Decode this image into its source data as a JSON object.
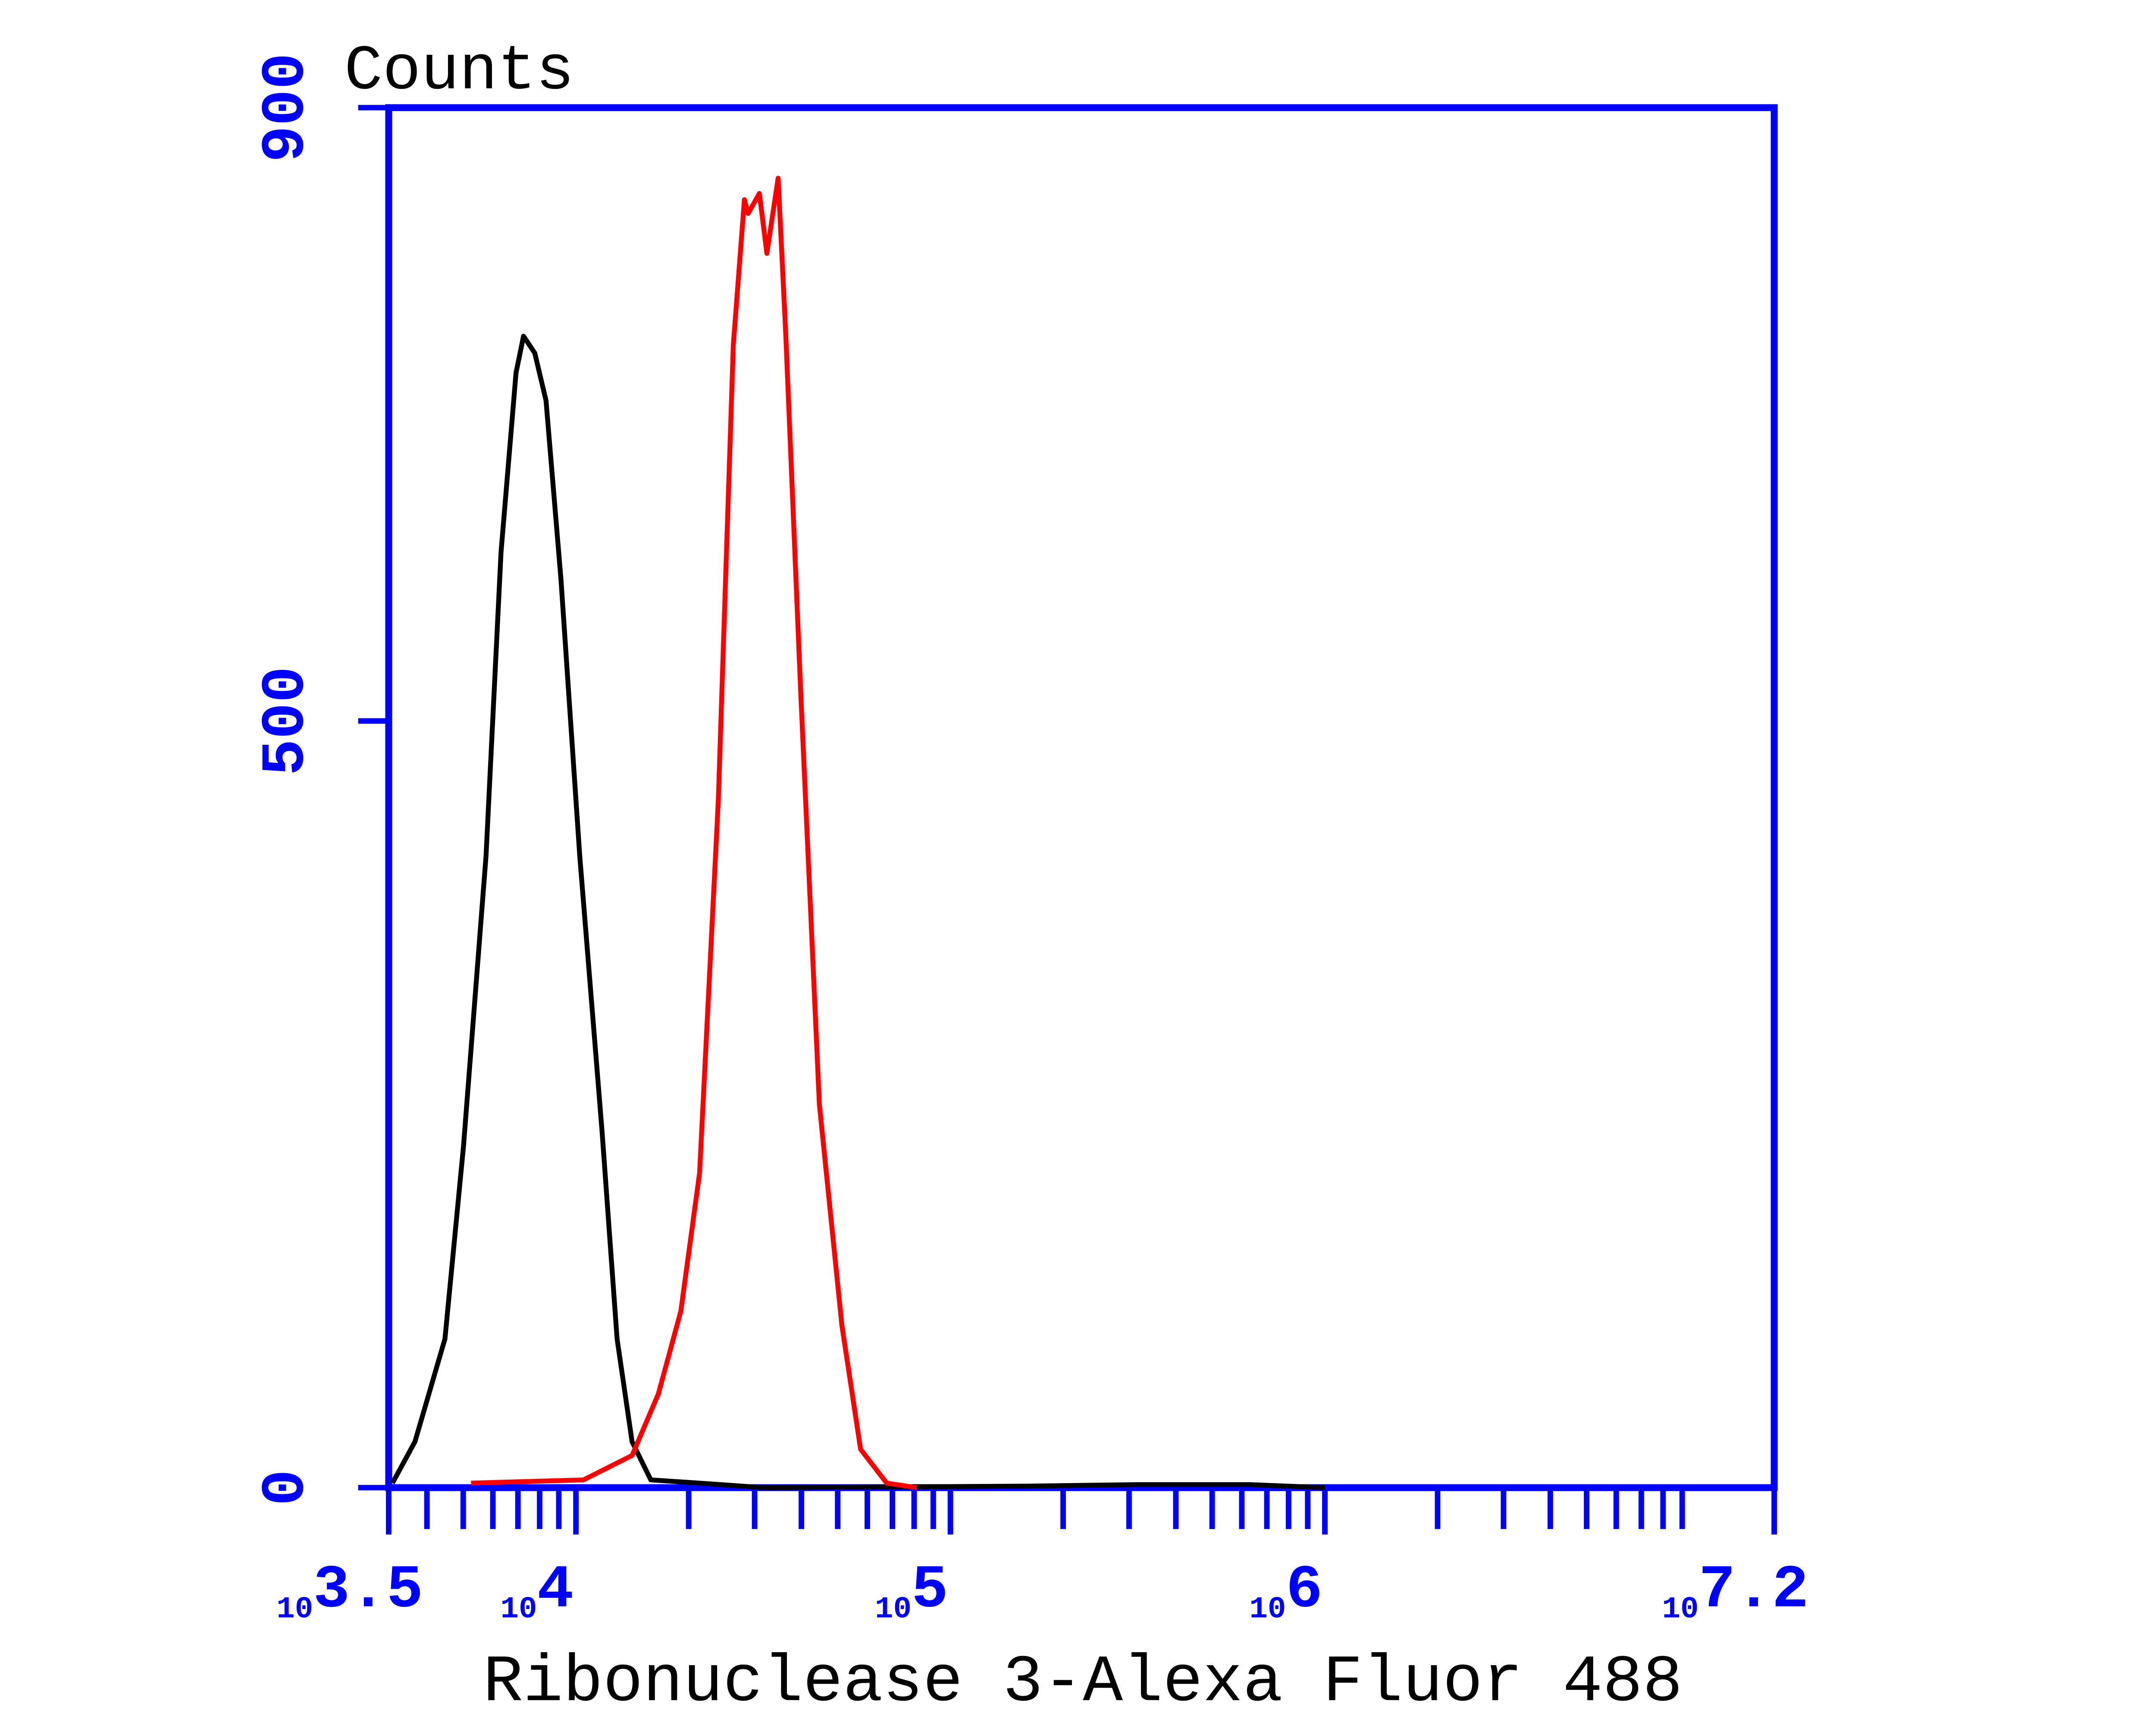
{
  "chart_data": {
    "type": "line",
    "y_label": "Counts",
    "x_label": "Ribonuclease 3-Alexa Fluor 488",
    "xlim": [
      3.5,
      7.2
    ],
    "xticks": [
      {
        "value": 3.5,
        "label": "10",
        "exponent": "3.5"
      },
      {
        "value": 4,
        "label": "10",
        "exponent": "4"
      },
      {
        "value": 5,
        "label": "10",
        "exponent": "5"
      },
      {
        "value": 6,
        "label": "10",
        "exponent": "6"
      },
      {
        "value": 7.2,
        "label": "10",
        "exponent": "7.2"
      }
    ],
    "minor_ticks": true,
    "ylim": [
      0,
      900
    ],
    "yticks": [
      0,
      500,
      900
    ],
    "axis_color": "#0000ff",
    "series": [
      {
        "color": "#000000",
        "x": [
          3.51,
          3.57,
          3.65,
          3.7,
          3.76,
          3.8,
          3.84,
          3.86,
          3.89,
          3.92,
          3.96,
          4.01,
          4.07,
          4.11,
          4.15,
          4.2,
          4.33,
          4.5,
          5.2,
          5.5,
          5.8,
          6.0
        ],
        "values": [
          3,
          30,
          97,
          223,
          412,
          610,
          727,
          751,
          740,
          709,
          592,
          412,
          232,
          97,
          30,
          5,
          3,
          0,
          1,
          2,
          2,
          0
        ]
      },
      {
        "color": "#ff0000",
        "x": [
          3.72,
          4.02,
          4.15,
          4.22,
          4.28,
          4.33,
          4.38,
          4.42,
          4.45,
          4.46,
          4.49,
          4.51,
          4.54,
          4.56,
          4.6,
          4.65,
          4.71,
          4.76,
          4.83,
          4.91
        ],
        "values": [
          3,
          5,
          21,
          61,
          115,
          205,
          448,
          745,
          840,
          831,
          844,
          805,
          854,
          754,
          520,
          250,
          106,
          25,
          3,
          0
        ]
      }
    ]
  }
}
